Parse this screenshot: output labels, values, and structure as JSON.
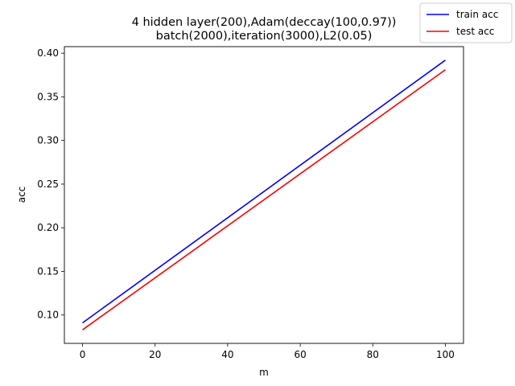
{
  "chart_data": {
    "type": "line",
    "title_lines": [
      "4 hidden layer(200),Adam(deccay(100,0.97))",
      "batch(2000),iteration(3000),L2(0.05)"
    ],
    "xlabel": "m",
    "ylabel": "acc",
    "xlim": [
      -5,
      105
    ],
    "ylim": [
      0.0675,
      0.4075
    ],
    "xticks": [
      0,
      20,
      40,
      60,
      80,
      100
    ],
    "xtick_labels": [
      "0",
      "20",
      "40",
      "60",
      "80",
      "100"
    ],
    "yticks": [
      0.1,
      0.15,
      0.2,
      0.25,
      0.3,
      0.35,
      0.4
    ],
    "ytick_labels": [
      "0.10",
      "0.15",
      "0.20",
      "0.25",
      "0.30",
      "0.35",
      "0.40"
    ],
    "grid": false,
    "legend_position": "top-right",
    "series": [
      {
        "name": "train acc",
        "color": "#0000ff",
        "x": [
          0,
          100
        ],
        "y": [
          0.091,
          0.392
        ]
      },
      {
        "name": "test acc",
        "color": "#ff0000",
        "x": [
          0,
          100
        ],
        "y": [
          0.083,
          0.381
        ]
      }
    ]
  }
}
